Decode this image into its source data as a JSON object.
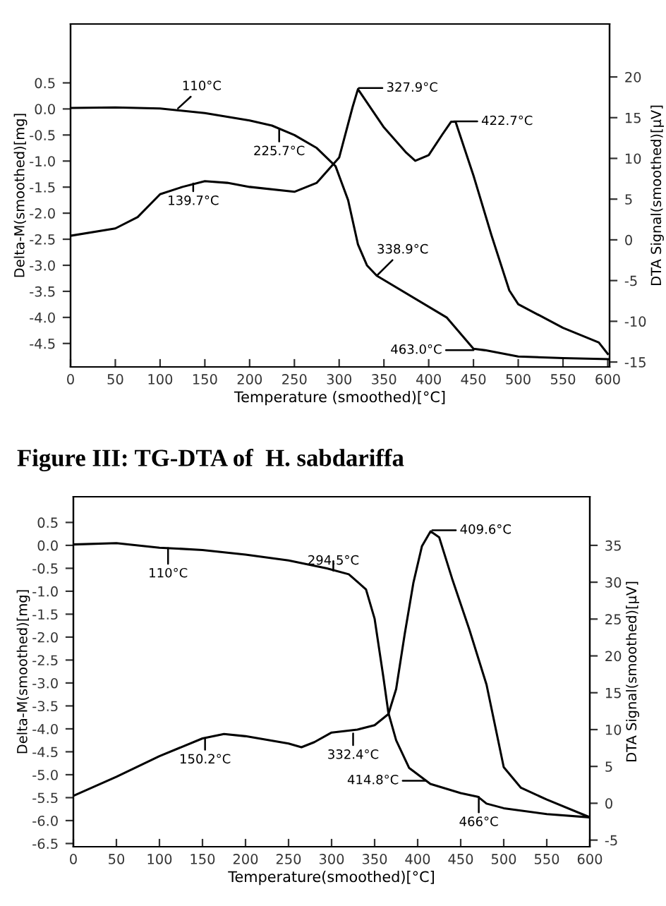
{
  "chart_data": [
    {
      "type": "line",
      "xlabel": "Temperature (smoothed)[°C]",
      "ylabel": "Delta-M(smoothed)[mg]",
      "y2label": "DTA Signal(smoothed)[µV]",
      "xlim": [
        0,
        602
      ],
      "xticks": [
        0,
        50,
        100,
        150,
        200,
        250,
        300,
        350,
        400,
        450,
        500,
        550,
        600
      ],
      "ylim": [
        -4.95,
        1.63
      ],
      "yticks": [
        0.5,
        {
          "value": 0,
          "label": "0.0"
        },
        -0.5,
        {
          "value": -1,
          "label": "-1.0"
        },
        -1.5,
        {
          "value": -2,
          "label": "-2.0"
        },
        -2.5,
        {
          "value": -3,
          "label": "-3.0"
        },
        -3.5,
        {
          "value": -4,
          "label": "-4.0"
        },
        -4.5
      ],
      "y2lim": [
        -15.6,
        26.5
      ],
      "y2ticks": [
        20,
        15,
        10,
        5,
        0,
        -5,
        -10,
        -15
      ],
      "grid": false,
      "legend": false,
      "series": [
        {
          "color": "#000000",
          "x": [
            0,
            50,
            100,
            150,
            200,
            225,
            250,
            275,
            296,
            310,
            321,
            331,
            342,
            420,
            450,
            463,
            500,
            550,
            600
          ],
          "values": [
            0.02,
            0.03,
            0.01,
            -0.08,
            -0.22,
            -0.32,
            -0.5,
            -0.75,
            -1.1,
            -1.75,
            -2.6,
            -3.0,
            -3.2,
            -4.0,
            -4.6,
            -4.63,
            -4.75,
            -4.78,
            -4.8
          ]
        },
        {
          "color": "#000000",
          "axis": "y2",
          "x": [
            0,
            50,
            75,
            100,
            125,
            150,
            175,
            200,
            250,
            275,
            300,
            315,
            321,
            350,
            375,
            385,
            400,
            415,
            425,
            430,
            450,
            470,
            490,
            500,
            550,
            590,
            600
          ],
          "values": [
            0.5,
            1.4,
            2.8,
            5.6,
            6.5,
            7.2,
            7.0,
            6.5,
            5.9,
            7.0,
            10.1,
            16.3,
            18.5,
            13.8,
            10.7,
            9.7,
            10.4,
            12.9,
            14.5,
            14.5,
            7.9,
            0.6,
            -6.2,
            -7.9,
            -10.8,
            -12.6,
            -14.0
          ]
        }
      ],
      "annotations": [
        {
          "text": "110°C",
          "x": 120,
          "y": 0.01
        },
        {
          "text": "225.7°C",
          "x": 233,
          "y": -0.4
        },
        {
          "text": "139.7°C",
          "x": 137,
          "y": -1.43
        },
        {
          "text": "327.9°C",
          "x": 322,
          "y": 0.4
        },
        {
          "text": "422.7°C",
          "x": 428,
          "y": -0.24
        },
        {
          "text": "338.9°C",
          "x": 342,
          "y": -3.2
        },
        {
          "text": "463.0°C",
          "x": 450,
          "y": -4.63
        }
      ]
    },
    {
      "type": "line",
      "title": "Figure III: TG-DTA of  H. sabdariffa",
      "xlabel": "Temperature(smoothed)[°C]",
      "ylabel": "Delta-M(smoothed)[mg]",
      "y2label": "DTA Signal(smoothed)[µV]",
      "xlim": [
        0,
        600
      ],
      "xticks": [
        0,
        50,
        100,
        150,
        200,
        250,
        300,
        350,
        400,
        450,
        500,
        550,
        600
      ],
      "ylim": [
        -6.57,
        1.06
      ],
      "yticks": [
        0.5,
        {
          "value": 0,
          "label": "0.0"
        },
        -0.5,
        {
          "value": -1,
          "label": "-1.0"
        },
        -1.5,
        {
          "value": -2,
          "label": "-2.0"
        },
        -2.5,
        {
          "value": -3,
          "label": "-3.0"
        },
        -3.5,
        {
          "value": -4,
          "label": "-4.0"
        },
        -4.5,
        {
          "value": -5,
          "label": "-5.0"
        },
        -5.5,
        {
          "value": -6,
          "label": "-6.0"
        },
        -6.5
      ],
      "y2lim": [
        -5.9,
        41.6
      ],
      "y2ticks": [
        35,
        30,
        25,
        20,
        15,
        10,
        5,
        0,
        -5
      ],
      "grid": false,
      "legend": false,
      "series": [
        {
          "color": "#000000",
          "x": [
            0,
            50,
            100,
            150,
            200,
            250,
            294.5,
            320,
            340,
            350,
            360,
            366,
            375,
            390,
            414.8,
            450,
            470,
            480,
            500,
            550,
            600
          ],
          "values": [
            0.02,
            0.05,
            -0.05,
            -0.1,
            -0.2,
            -0.33,
            -0.5,
            -0.63,
            -0.96,
            -1.6,
            -2.85,
            -3.65,
            -4.25,
            -4.85,
            -5.2,
            -5.4,
            -5.48,
            -5.63,
            -5.73,
            -5.86,
            -5.93
          ]
        },
        {
          "color": "#000000",
          "axis": "y2",
          "x": [
            0,
            50,
            100,
            150,
            175,
            200,
            250,
            265,
            280,
            300,
            330,
            350,
            366,
            375,
            385,
            395,
            405,
            415,
            425,
            440,
            460,
            480,
            500,
            520,
            550,
            600
          ],
          "values": [
            1.0,
            3.6,
            6.4,
            8.8,
            9.4,
            9.1,
            8.1,
            7.6,
            8.3,
            9.6,
            10.0,
            10.6,
            12.1,
            15.5,
            23,
            29.9,
            34.9,
            36.9,
            36.1,
            30.5,
            23.6,
            16.1,
            4.9,
            2.1,
            0.5,
            -1.9
          ]
        }
      ],
      "annotations": [
        {
          "text": "110°C",
          "x": 110,
          "y": -0.06
        },
        {
          "text": "294.5°C",
          "x": 302,
          "y": -0.55
        },
        {
          "text": "409.6°C",
          "x": 417,
          "y": 0.33
        },
        {
          "text": "150.2°C",
          "x": 153,
          "y": -4.2
        },
        {
          "text": "332.4°C",
          "x": 325,
          "y": -4.1
        },
        {
          "text": "414.8°C",
          "x": 410,
          "y": -5.13
        },
        {
          "text": "466°C",
          "x": 471,
          "y": -5.48
        }
      ]
    }
  ]
}
